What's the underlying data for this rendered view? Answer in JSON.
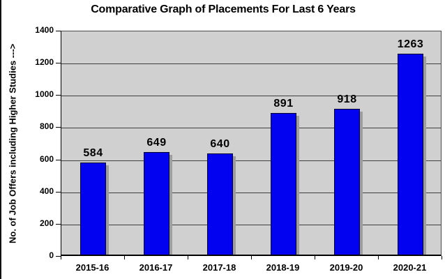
{
  "chart_data": {
    "type": "bar",
    "title": "Comparative Graph of Placements For Last 6 Years",
    "categories": [
      "2015-16",
      "2016-17",
      "2017-18",
      "2018-19",
      "2019-20",
      "2020-21"
    ],
    "values": [
      584,
      649,
      640,
      891,
      918,
      1263
    ],
    "xlabel": "",
    "ylabel": "No. of Job Offers including Higher Studies --->",
    "ylim": [
      0,
      1400
    ],
    "ytick_step": 200,
    "ytick_labels": [
      "0",
      "200",
      "400",
      "600",
      "800",
      "1000",
      "1200",
      "1400"
    ],
    "grid": true,
    "legend": "none",
    "colors": {
      "bar_fill": "#0202f0",
      "bar_border": "#000028",
      "bar_shadow": "#9e9e9e",
      "plot_background": "#d0d0d0",
      "gridline": "#3f3f3f",
      "axis": "#000000",
      "page_background": "#ffffff",
      "text": "#000000"
    }
  }
}
